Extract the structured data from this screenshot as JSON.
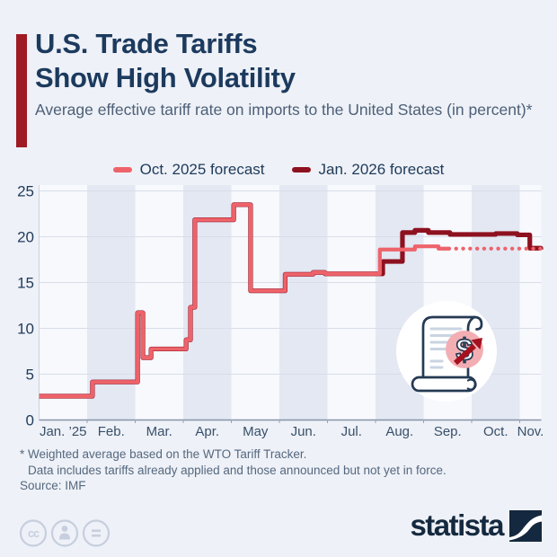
{
  "header": {
    "title_line1": "U.S. Trade Tariffs",
    "title_line2": "Show High Volatility",
    "subtitle": "Average effective tariff rate on imports to the United States (in percent)*",
    "accent_color": "#9e1b24"
  },
  "chart_data": {
    "type": "line",
    "title": "Average effective tariff rate on imports to the United States (in percent)",
    "unit": "percent",
    "x_unit": "months since Jan 1 2025",
    "x_axis": {
      "labels": [
        "Jan. ’25",
        "Feb.",
        "Mar.",
        "Apr.",
        "May",
        "Jun.",
        "Jul.",
        "Aug.",
        "Sep.",
        "Oct.",
        "Nov."
      ],
      "months_shown": 10.44
    },
    "y_axis": {
      "ticks": [
        0,
        5,
        10,
        15,
        20,
        25
      ],
      "min": 0,
      "max": 25
    },
    "grid": "horizontal",
    "style": {
      "band_plain": "#f7f9fd",
      "band_shaded": "#e3e8f3"
    },
    "series": [
      {
        "name": "Oct. 2025 forecast",
        "color": "#ee636a",
        "line_style": "solid, dotted from mid-September onward",
        "solid_points": [
          [
            0,
            2.6
          ],
          [
            1.11,
            4.15
          ],
          [
            2.05,
            11.7
          ],
          [
            2.16,
            6.8
          ],
          [
            2.33,
            7.75
          ],
          [
            3.06,
            8.75
          ],
          [
            3.15,
            12.3
          ],
          [
            3.24,
            21.85
          ],
          [
            4.05,
            23.5
          ],
          [
            4.4,
            14.1
          ],
          [
            5.12,
            15.9
          ],
          [
            5.7,
            16.1
          ],
          [
            5.95,
            15.95
          ],
          [
            7.09,
            18.6
          ],
          [
            7.82,
            18.95
          ],
          [
            8.31,
            18.7
          ],
          [
            8.53,
            18.7
          ]
        ],
        "dotted_points": [
          [
            8.53,
            18.7
          ],
          [
            10.36,
            18.7
          ],
          [
            10.44,
            18.45
          ]
        ]
      },
      {
        "name": "Jan. 2026 forecast",
        "color": "#8e1120",
        "line_style": "solid",
        "points": [
          [
            0,
            2.6
          ],
          [
            1.11,
            4.15
          ],
          [
            2.05,
            11.7
          ],
          [
            2.16,
            6.8
          ],
          [
            2.33,
            7.75
          ],
          [
            3.06,
            8.75
          ],
          [
            3.15,
            12.3
          ],
          [
            3.24,
            21.85
          ],
          [
            4.05,
            23.5
          ],
          [
            4.4,
            14.1
          ],
          [
            5.12,
            15.9
          ],
          [
            5.7,
            16.1
          ],
          [
            5.95,
            15.95
          ],
          [
            7.15,
            17.3
          ],
          [
            7.56,
            20.45
          ],
          [
            7.82,
            20.7
          ],
          [
            8.1,
            20.45
          ],
          [
            8.55,
            20.25
          ],
          [
            9.5,
            20.35
          ],
          [
            9.95,
            20.2
          ],
          [
            10.21,
            18.75
          ],
          [
            10.44,
            18.6
          ]
        ]
      }
    ]
  },
  "footer": {
    "footnote_line1": "* Weighted average based on the WTO Tariff Tracker.",
    "footnote_line2": "Data includes tariffs already applied and those announced but not yet in force.",
    "source": "Source: IMF"
  },
  "branding": {
    "logo_text": "statista",
    "license_icons": [
      "cc",
      "attribution",
      "no-derivatives"
    ]
  }
}
